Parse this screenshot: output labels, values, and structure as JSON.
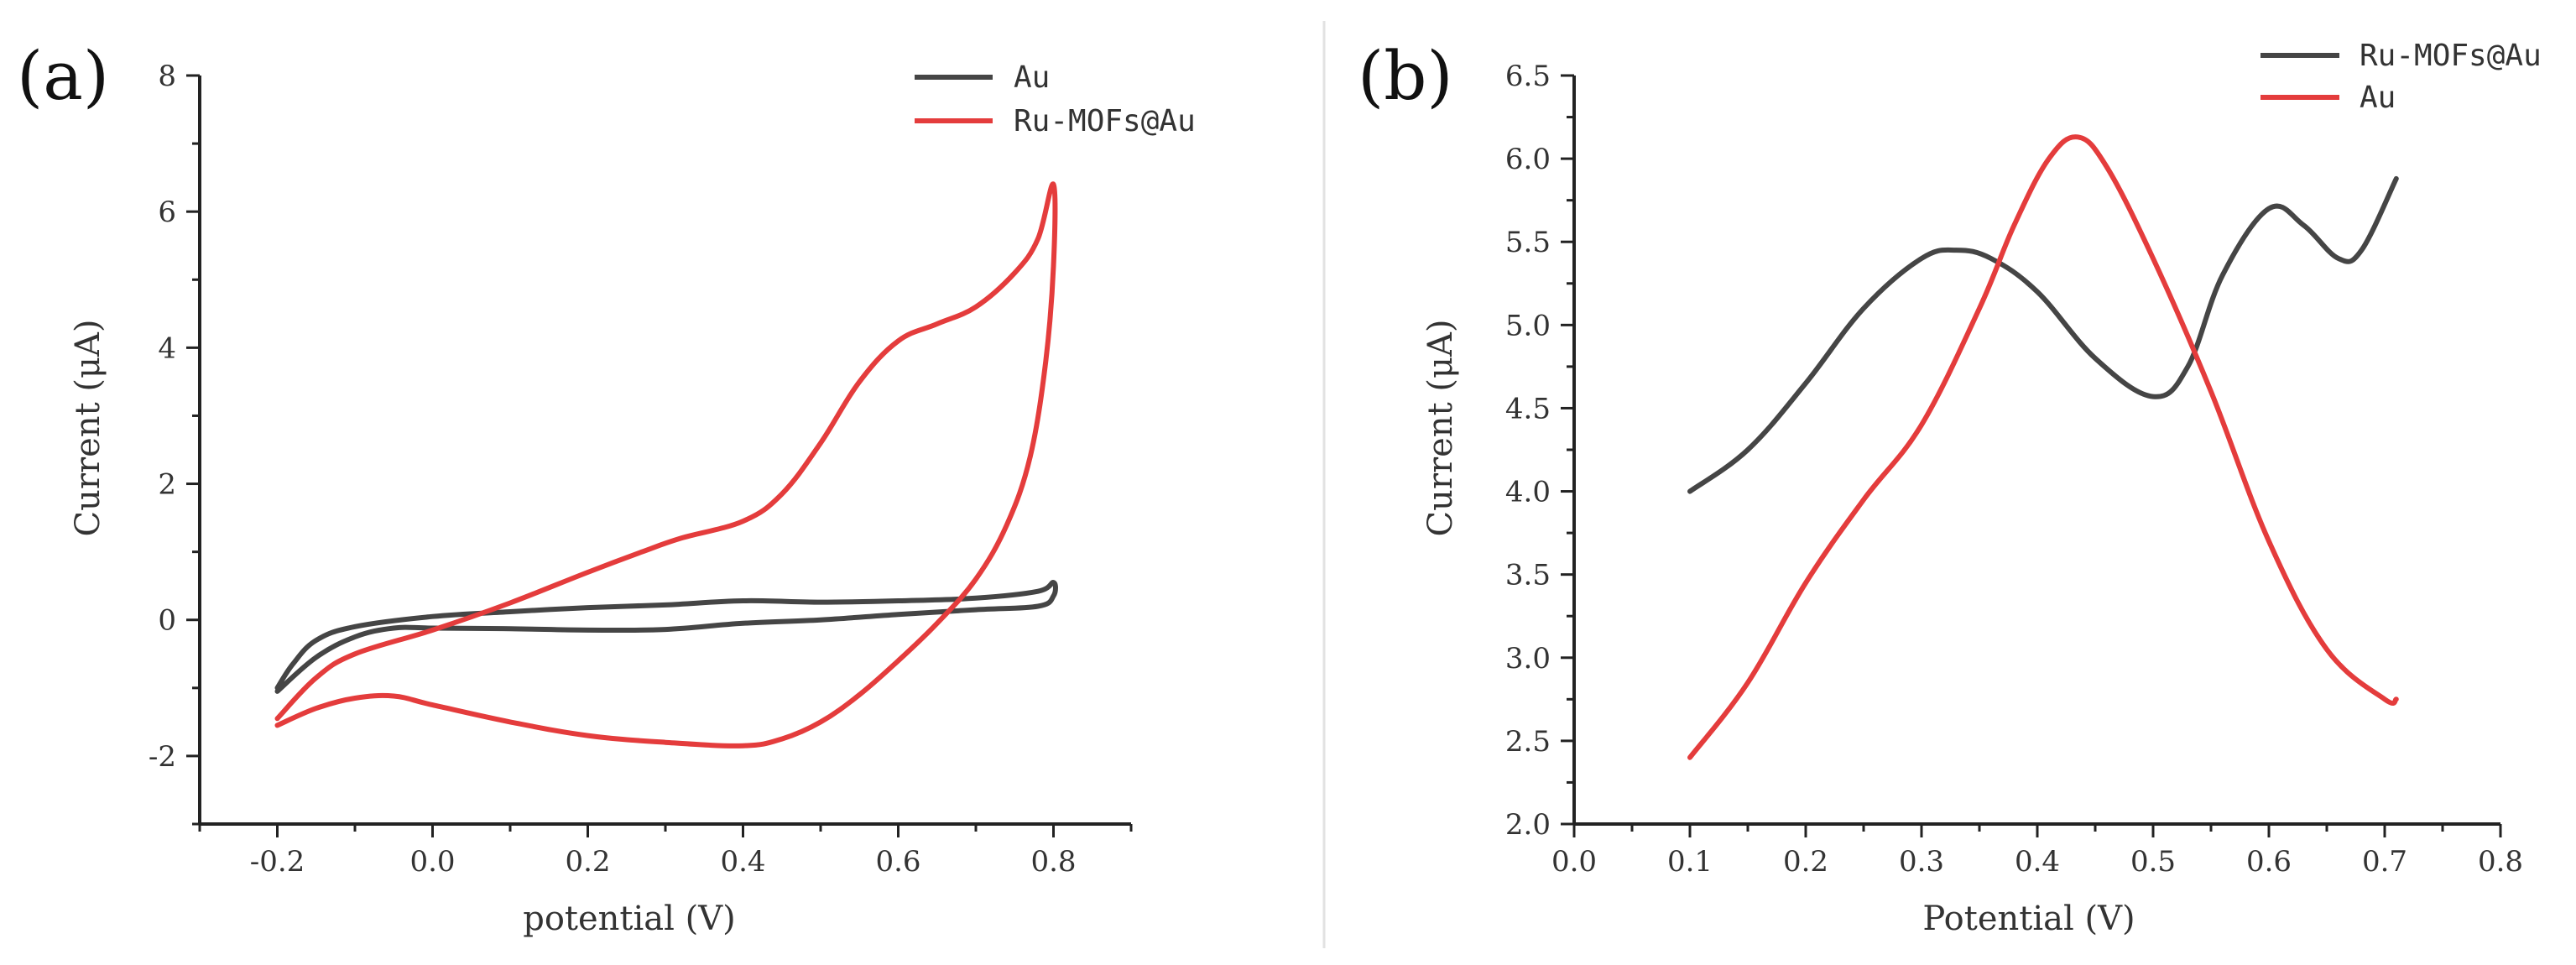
{
  "chart_data": [
    {
      "panel": "(a)",
      "type": "line",
      "title": "",
      "xlabel": "potential (V)",
      "ylabel": "Current (μA)",
      "xlim": [
        -0.3,
        0.9
      ],
      "ylim": [
        -3,
        8
      ],
      "xticks": [
        -0.2,
        0.0,
        0.2,
        0.4,
        0.6,
        0.8
      ],
      "xtick_labels": [
        "-0.2",
        "0.0",
        "0.2",
        "0.4",
        "0.6",
        "0.8"
      ],
      "yticks": [
        -2,
        0,
        2,
        4,
        6,
        8
      ],
      "ytick_labels": [
        "-2",
        "0",
        "2",
        "4",
        "6",
        "8"
      ],
      "legend": {
        "position": "top-right",
        "entries": [
          "Au",
          "Ru-MOFs@Au"
        ]
      },
      "series": [
        {
          "name": "Au",
          "color": "#454545",
          "points": [
            [
              -0.2,
              -1.0
            ],
            [
              -0.18,
              -0.65
            ],
            [
              -0.15,
              -0.3
            ],
            [
              -0.1,
              -0.1
            ],
            [
              0.0,
              0.05
            ],
            [
              0.1,
              0.12
            ],
            [
              0.2,
              0.18
            ],
            [
              0.3,
              0.22
            ],
            [
              0.4,
              0.28
            ],
            [
              0.5,
              0.26
            ],
            [
              0.6,
              0.28
            ],
            [
              0.7,
              0.32
            ],
            [
              0.78,
              0.42
            ],
            [
              0.8,
              0.55
            ],
            [
              0.8,
              0.35
            ],
            [
              0.78,
              0.2
            ],
            [
              0.7,
              0.15
            ],
            [
              0.6,
              0.08
            ],
            [
              0.5,
              0.0
            ],
            [
              0.4,
              -0.05
            ],
            [
              0.3,
              -0.14
            ],
            [
              0.2,
              -0.15
            ],
            [
              0.1,
              -0.13
            ],
            [
              0.0,
              -0.12
            ],
            [
              -0.05,
              -0.12
            ],
            [
              -0.1,
              -0.25
            ],
            [
              -0.15,
              -0.55
            ],
            [
              -0.2,
              -1.05
            ]
          ]
        },
        {
          "name": "Ru-MOFs@Au",
          "color": "#e43c3c",
          "points": [
            [
              -0.2,
              -1.45
            ],
            [
              -0.15,
              -0.85
            ],
            [
              -0.1,
              -0.5
            ],
            [
              0.0,
              -0.15
            ],
            [
              0.1,
              0.25
            ],
            [
              0.2,
              0.7
            ],
            [
              0.27,
              1.0
            ],
            [
              0.32,
              1.2
            ],
            [
              0.4,
              1.45
            ],
            [
              0.45,
              1.85
            ],
            [
              0.5,
              2.6
            ],
            [
              0.55,
              3.5
            ],
            [
              0.6,
              4.1
            ],
            [
              0.65,
              4.35
            ],
            [
              0.7,
              4.6
            ],
            [
              0.75,
              5.1
            ],
            [
              0.78,
              5.6
            ],
            [
              0.8,
              6.4
            ],
            [
              0.8,
              5.2
            ],
            [
              0.79,
              3.8
            ],
            [
              0.77,
              2.4
            ],
            [
              0.74,
              1.4
            ],
            [
              0.7,
              0.6
            ],
            [
              0.65,
              -0.05
            ],
            [
              0.6,
              -0.6
            ],
            [
              0.55,
              -1.1
            ],
            [
              0.5,
              -1.5
            ],
            [
              0.45,
              -1.75
            ],
            [
              0.4,
              -1.85
            ],
            [
              0.3,
              -1.8
            ],
            [
              0.2,
              -1.7
            ],
            [
              0.1,
              -1.5
            ],
            [
              0.0,
              -1.25
            ],
            [
              -0.05,
              -1.12
            ],
            [
              -0.1,
              -1.15
            ],
            [
              -0.15,
              -1.3
            ],
            [
              -0.2,
              -1.55
            ]
          ]
        }
      ]
    },
    {
      "panel": "(b)",
      "type": "line",
      "title": "",
      "xlabel": "Potential (V)",
      "ylabel": "Current (μA)",
      "xlim": [
        0.0,
        0.8
      ],
      "ylim": [
        2.0,
        6.5
      ],
      "xticks": [
        0.0,
        0.1,
        0.2,
        0.3,
        0.4,
        0.5,
        0.6,
        0.7,
        0.8
      ],
      "xtick_labels": [
        "0.0",
        "0.1",
        "0.2",
        "0.3",
        "0.4",
        "0.5",
        "0.6",
        "0.7",
        "0.8"
      ],
      "yticks": [
        2.0,
        2.5,
        3.0,
        3.5,
        4.0,
        4.5,
        5.0,
        5.5,
        6.0,
        6.5
      ],
      "ytick_labels": [
        "2.0",
        "2.5",
        "3.0",
        "3.5",
        "4.0",
        "4.5",
        "5.0",
        "5.5",
        "6.0",
        "6.5"
      ],
      "legend": {
        "position": "top-right",
        "entries": [
          "Ru-MOFs@Au",
          "Au"
        ]
      },
      "series": [
        {
          "name": "Ru-MOFs@Au",
          "color": "#454545",
          "points": [
            [
              0.1,
              4.0
            ],
            [
              0.15,
              4.25
            ],
            [
              0.2,
              4.65
            ],
            [
              0.25,
              5.1
            ],
            [
              0.3,
              5.4
            ],
            [
              0.33,
              5.45
            ],
            [
              0.36,
              5.4
            ],
            [
              0.4,
              5.2
            ],
            [
              0.45,
              4.8
            ],
            [
              0.5,
              4.57
            ],
            [
              0.53,
              4.75
            ],
            [
              0.56,
              5.3
            ],
            [
              0.6,
              5.7
            ],
            [
              0.63,
              5.6
            ],
            [
              0.66,
              5.4
            ],
            [
              0.68,
              5.45
            ],
            [
              0.71,
              5.88
            ]
          ]
        },
        {
          "name": "Au",
          "color": "#e43c3c",
          "points": [
            [
              0.1,
              2.4
            ],
            [
              0.15,
              2.85
            ],
            [
              0.2,
              3.45
            ],
            [
              0.25,
              3.95
            ],
            [
              0.3,
              4.4
            ],
            [
              0.35,
              5.1
            ],
            [
              0.38,
              5.6
            ],
            [
              0.41,
              6.0
            ],
            [
              0.435,
              6.13
            ],
            [
              0.46,
              5.95
            ],
            [
              0.5,
              5.4
            ],
            [
              0.55,
              4.6
            ],
            [
              0.6,
              3.7
            ],
            [
              0.65,
              3.05
            ],
            [
              0.7,
              2.75
            ],
            [
              0.71,
              2.75
            ]
          ]
        }
      ]
    }
  ]
}
